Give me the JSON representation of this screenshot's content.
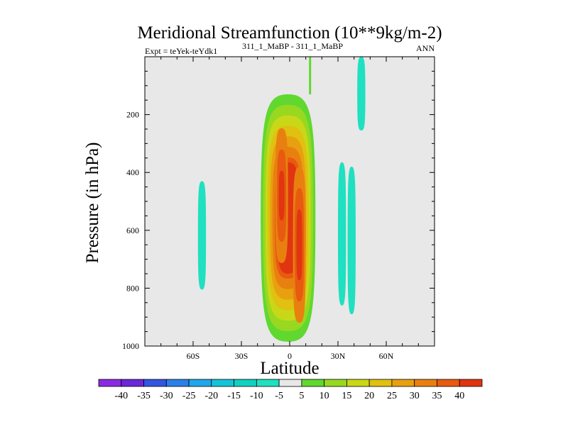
{
  "chart_data": {
    "type": "contour",
    "title": "Meridional Streamfunction (10**9kg/m-2)",
    "subtitle_left": "Expt = teYek-teYdk1",
    "subtitle_center": "311_1_MaBP - 311_1_MaBP",
    "subtitle_right": "ANN",
    "xlabel": "Latitude",
    "ylabel": "Pressure (in hPa)",
    "xlim": [
      -90,
      90
    ],
    "ylim": [
      1000,
      0
    ],
    "x_ticks": [
      {
        "value": -60,
        "label": "60S"
      },
      {
        "value": -30,
        "label": "30S"
      },
      {
        "value": 0,
        "label": "0"
      },
      {
        "value": 30,
        "label": "30N"
      },
      {
        "value": 60,
        "label": "60N"
      }
    ],
    "y_ticks": [
      {
        "value": 200,
        "label": "200"
      },
      {
        "value": 400,
        "label": "400"
      },
      {
        "value": 600,
        "label": "600"
      },
      {
        "value": 800,
        "label": "800"
      },
      {
        "value": 1000,
        "label": "1000"
      }
    ],
    "colorbar": {
      "levels": [
        -40,
        -35,
        -30,
        -25,
        -20,
        -15,
        -10,
        -5,
        5,
        10,
        15,
        20,
        25,
        30,
        35,
        40
      ],
      "colors": [
        "#8a2be2",
        "#6a28d8",
        "#3355e0",
        "#2c7fe8",
        "#1ea7ea",
        "#14c3d8",
        "#10d0c0",
        "#1fe0c0",
        "#e8e8e8",
        "#60d830",
        "#98d820",
        "#c8d818",
        "#e0c010",
        "#e8a010",
        "#e88010",
        "#e85a10",
        "#e03510"
      ]
    },
    "features": [
      {
        "name": "positive tropical cell",
        "value_range": [
          5,
          40
        ],
        "lat_range": [
          -18,
          16
        ],
        "pressure_range": [
          130,
          985
        ],
        "maxima": [
          {
            "lat": -5,
            "p": 480,
            "value": 40
          },
          {
            "lat": 6,
            "p": 650,
            "value": 40
          }
        ]
      },
      {
        "name": "negative southern cell",
        "value": -5,
        "lat_range": [
          -57,
          -52
        ],
        "pressure_range": [
          430,
          805
        ]
      },
      {
        "name": "negative northern cell 1",
        "value": -5,
        "lat_range": [
          30,
          35
        ],
        "pressure_range": [
          365,
          860
        ]
      },
      {
        "name": "negative northern cell 2",
        "value": -5,
        "lat_range": [
          36,
          41
        ],
        "pressure_range": [
          380,
          890
        ]
      },
      {
        "name": "negative upper cell",
        "value": -5,
        "lat_range": [
          42,
          47
        ],
        "pressure_range": [
          0,
          255
        ]
      }
    ]
  }
}
